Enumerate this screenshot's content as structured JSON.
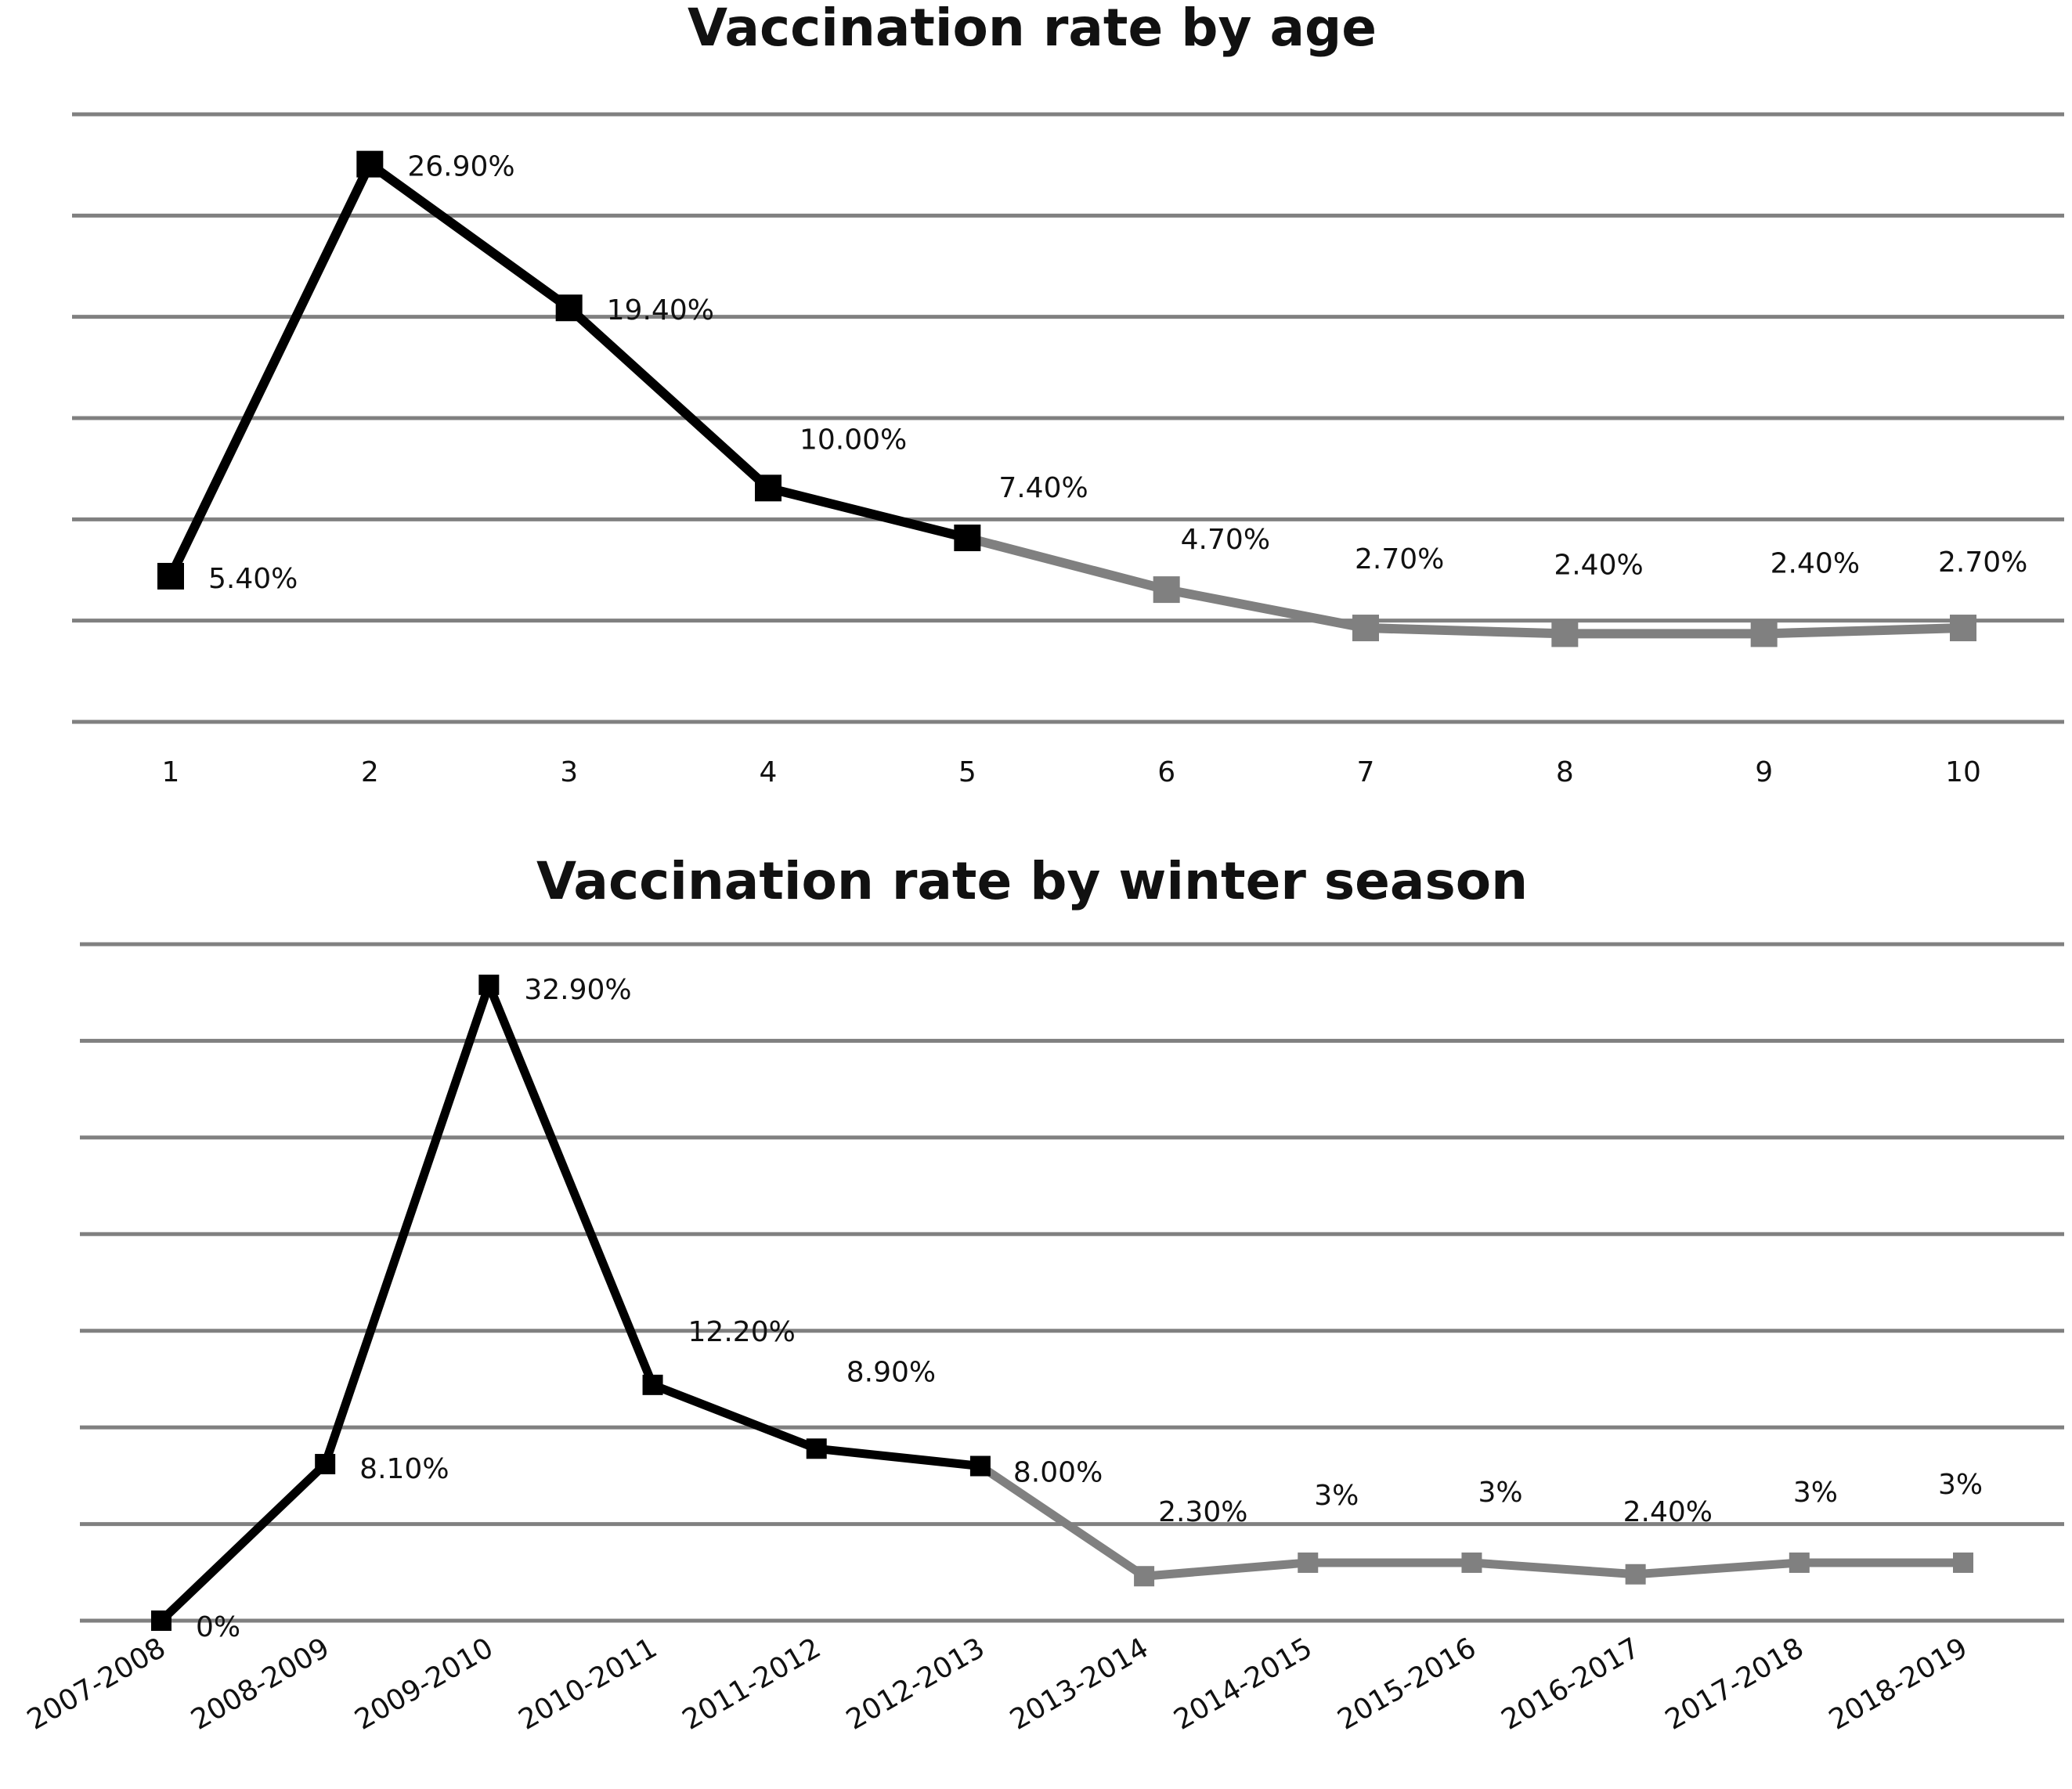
{
  "chart_data": [
    {
      "type": "line",
      "title": "Vaccination rate by age",
      "xlabel": "",
      "ylabel": "",
      "categories": [
        "1",
        "2",
        "3",
        "4",
        "5",
        "6",
        "7",
        "8",
        "9",
        "10"
      ],
      "values": [
        5.4,
        26.9,
        19.4,
        10.0,
        7.4,
        4.7,
        2.7,
        2.4,
        2.4,
        2.7
      ],
      "data_labels": [
        "5.40%",
        "26.90%",
        "19.40%",
        "10.00%",
        "7.40%",
        "4.70%",
        "2.70%",
        "2.40%",
        "2.40%",
        "2.70%"
      ],
      "ylim": [
        -2.2,
        29.5
      ],
      "grid": true,
      "segment_colors": {
        "first_part": "#000000",
        "second_part": "#808080",
        "split_index": 4
      }
    },
    {
      "type": "line",
      "title": "Vaccination rate by winter season",
      "xlabel": "",
      "ylabel": "",
      "categories": [
        "2007-2008",
        "2008-2009",
        "2009-2010",
        "2010-2011",
        "2011-2012",
        "2012-2013",
        "2013-2014",
        "2014-2015",
        "2015-2016",
        "2016-2017",
        "2017-2018",
        "2018-2019"
      ],
      "values": [
        0,
        8.1,
        32.9,
        12.2,
        8.9,
        8.0,
        2.3,
        3,
        3,
        2.4,
        3,
        3
      ],
      "data_labels": [
        "0%",
        "8.10%",
        "32.90%",
        "12.20%",
        "8.90%",
        "8.00%",
        "2.30%",
        "3%",
        "3%",
        "2.40%",
        "3%",
        "3%"
      ],
      "ylim": [
        0,
        35
      ],
      "grid": true,
      "segment_colors": {
        "first_part": "#000000",
        "second_part": "#808080",
        "split_index": 5
      }
    }
  ]
}
